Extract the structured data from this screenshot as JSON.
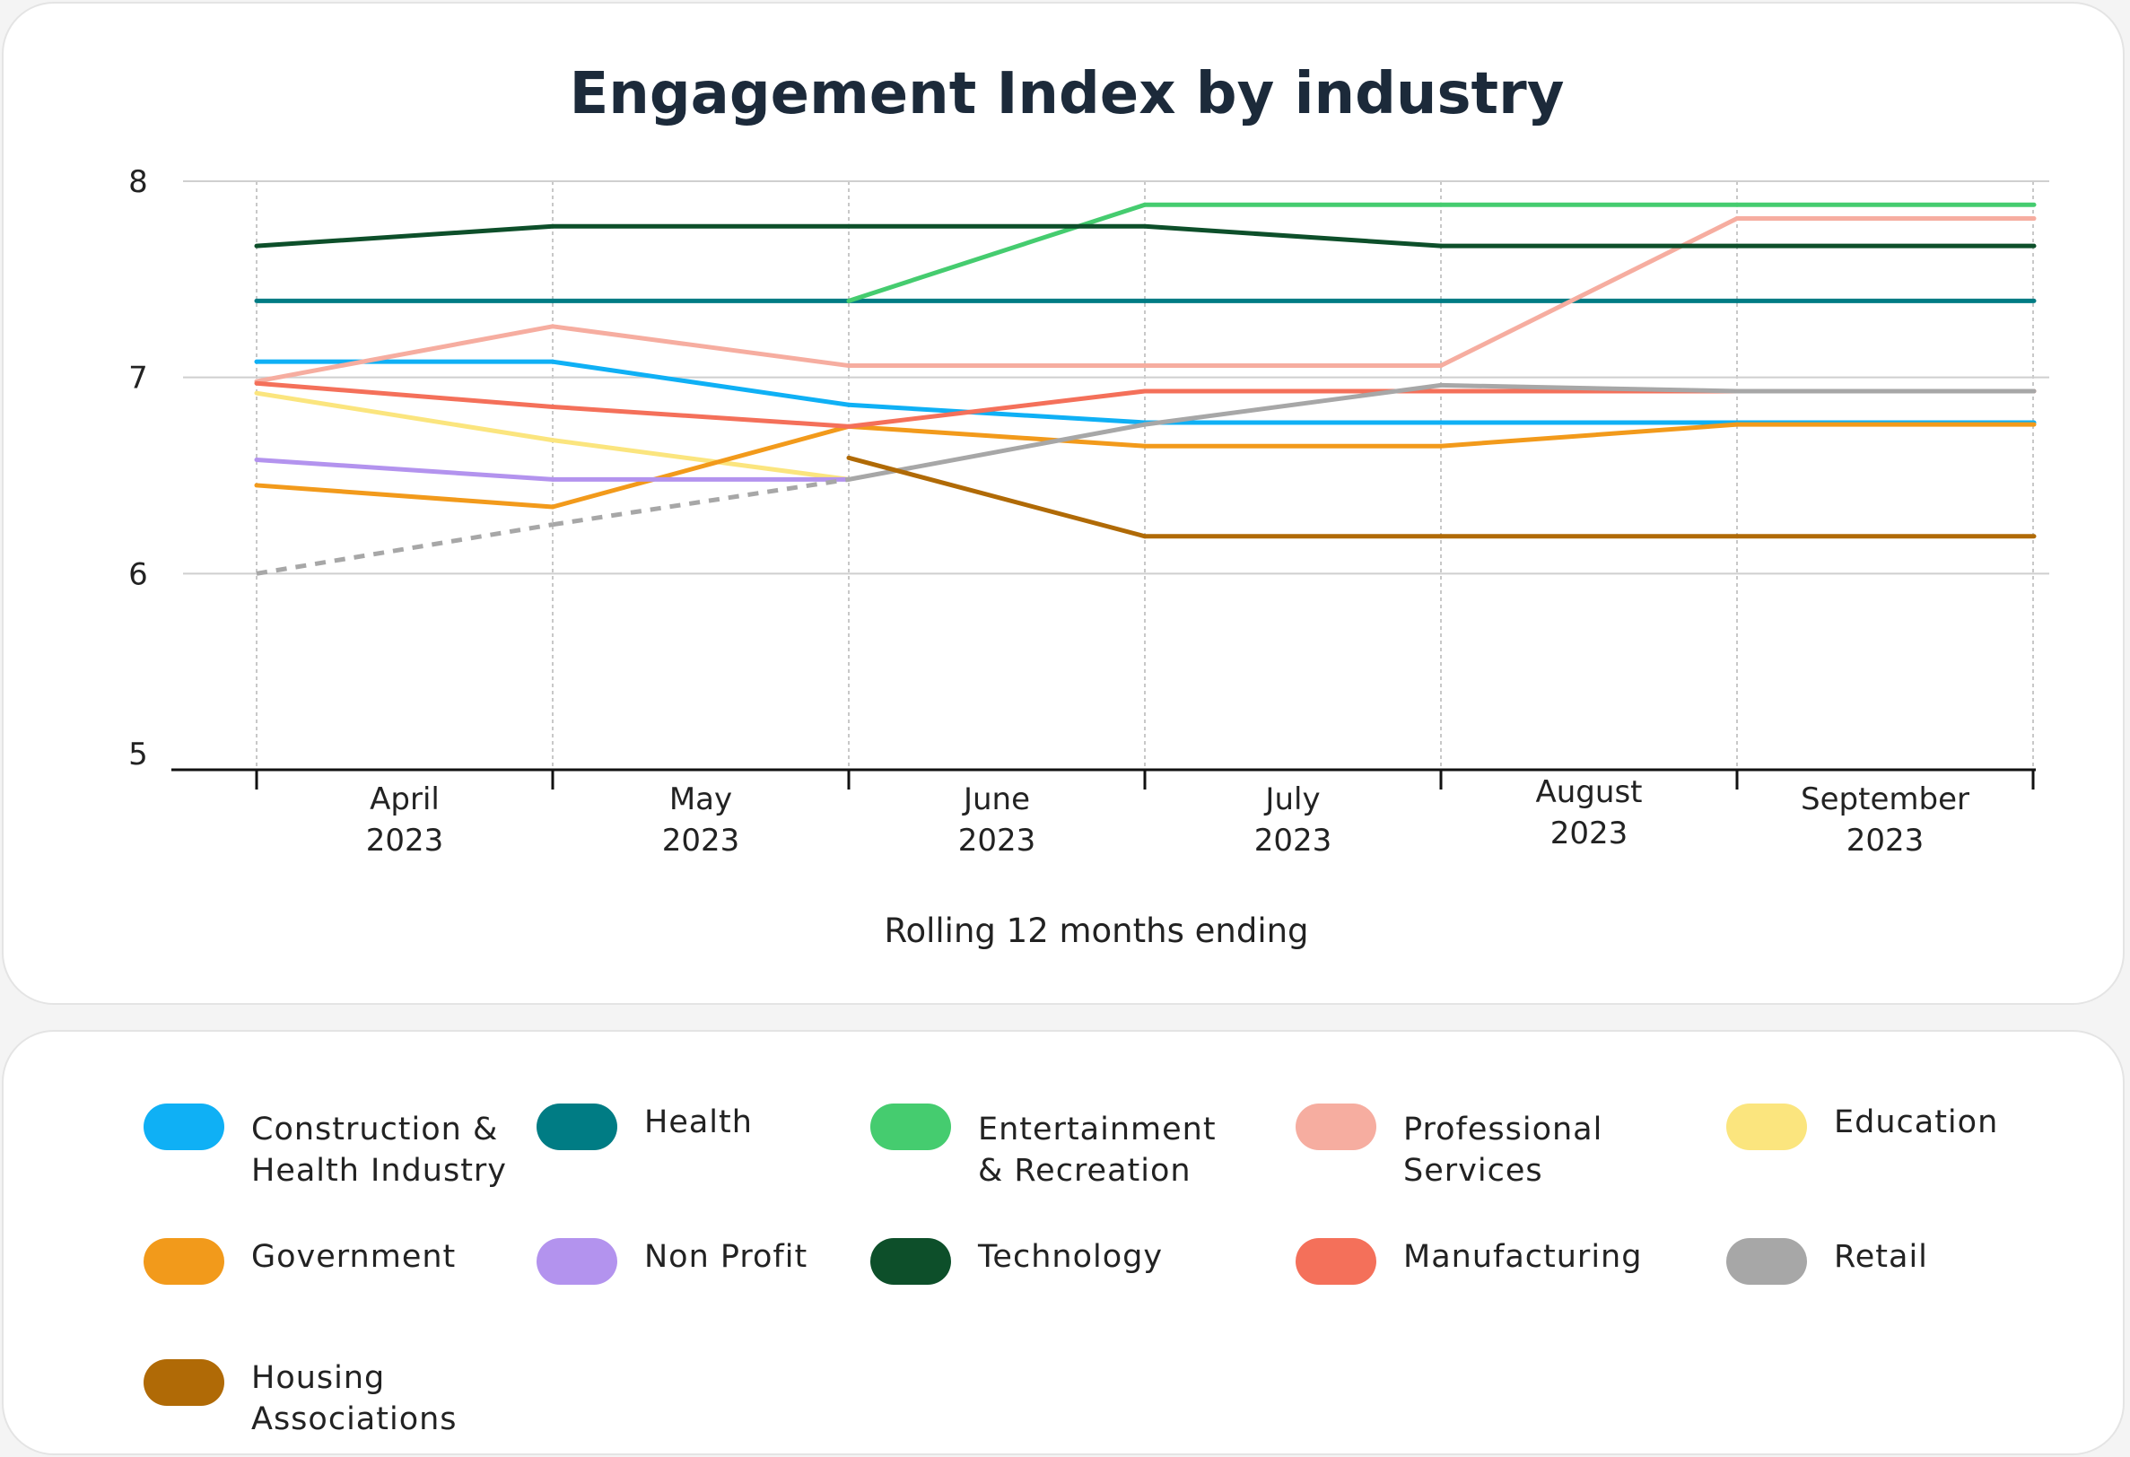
{
  "chart_data": {
    "type": "line",
    "title": "Engagement Index by industry",
    "xlabel": "Rolling 12 months ending",
    "ylabel": "",
    "ylim": [
      5,
      8
    ],
    "yticks": [
      "5",
      "6",
      "7",
      "8"
    ],
    "categories": [
      {
        "month": "April",
        "year": "2023"
      },
      {
        "month": "May",
        "year": "2023"
      },
      {
        "month": "June",
        "year": "2023"
      },
      {
        "month": "July",
        "year": "2023"
      },
      {
        "month": "August",
        "year": "2023"
      },
      {
        "month": "September",
        "year": "2023"
      }
    ],
    "series": [
      {
        "name": "Construction & Health Industry",
        "color": "#0fb0f5",
        "values": [
          7.08,
          7.08,
          6.86,
          6.77,
          6.77,
          6.77
        ]
      },
      {
        "name": "Health",
        "color": "#007c84",
        "values": [
          7.39,
          7.39,
          7.39,
          7.39,
          7.39,
          7.39
        ]
      },
      {
        "name": "Entertainment & Recreation",
        "color": "#45cc6f",
        "values": [
          null,
          null,
          7.39,
          7.88,
          7.88,
          7.88
        ]
      },
      {
        "name": "Professional Services",
        "color": "#f6ada0",
        "values": [
          6.98,
          7.26,
          7.06,
          7.06,
          7.06,
          7.81
        ]
      },
      {
        "name": "Education",
        "color": "#fbe57e",
        "values": [
          6.92,
          6.68,
          6.48,
          null,
          null,
          null
        ]
      },
      {
        "name": "Government",
        "color": "#f29a1b",
        "values": [
          6.45,
          6.34,
          6.75,
          6.65,
          6.65,
          6.76
        ]
      },
      {
        "name": "Non Profit",
        "color": "#b393ee",
        "values": [
          6.58,
          6.48,
          6.48,
          null,
          null,
          null
        ]
      },
      {
        "name": "Technology",
        "color": "#0d4f2a",
        "values": [
          7.67,
          7.77,
          7.77,
          7.77,
          7.67,
          7.67
        ]
      },
      {
        "name": "Manufacturing",
        "color": "#f4705a",
        "values": [
          6.97,
          6.85,
          6.75,
          6.93,
          6.93,
          6.93
        ]
      },
      {
        "name": "Retail",
        "color": "#a7a7a7",
        "values": [
          6.0,
          6.25,
          6.48,
          6.76,
          6.96,
          6.93
        ],
        "dashed_segments": [
          0,
          1
        ]
      },
      {
        "name": "Housing Associations",
        "color": "#b06a06",
        "values": [
          null,
          null,
          6.59,
          6.19,
          6.19,
          6.19
        ]
      }
    ]
  },
  "legend": [
    {
      "label_lines": [
        "Construction &",
        "Health Industry"
      ],
      "color": "#0fb0f5"
    },
    {
      "label_lines": [
        "Health"
      ],
      "color": "#007c84"
    },
    {
      "label_lines": [
        "Entertainment",
        "& Recreation"
      ],
      "color": "#45cc6f"
    },
    {
      "label_lines": [
        "Professional",
        "Services"
      ],
      "color": "#f6ada0"
    },
    {
      "label_lines": [
        "Education"
      ],
      "color": "#fbe57e"
    },
    {
      "label_lines": [
        "Government"
      ],
      "color": "#f29a1b"
    },
    {
      "label_lines": [
        "Non Profit"
      ],
      "color": "#b393ee"
    },
    {
      "label_lines": [
        "Technology"
      ],
      "color": "#0d4f2a"
    },
    {
      "label_lines": [
        "Manufacturing"
      ],
      "color": "#f4705a"
    },
    {
      "label_lines": [
        "Retail"
      ],
      "color": "#a7a7a7"
    },
    {
      "label_lines": [
        "Housing Associations"
      ],
      "color": "#b06a06"
    }
  ]
}
